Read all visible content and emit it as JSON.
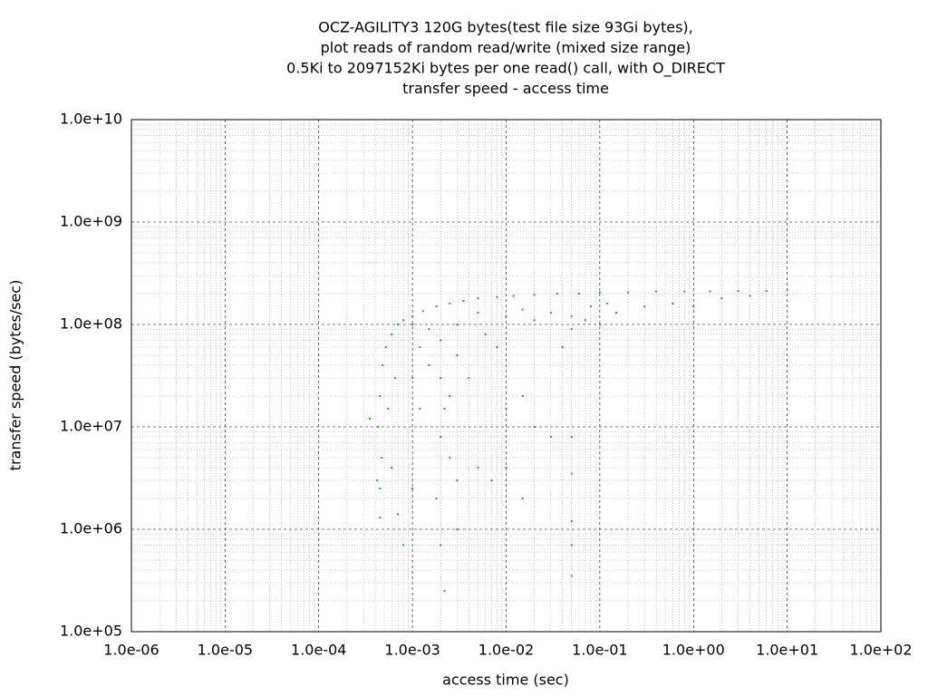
{
  "chart_data": {
    "type": "scatter",
    "title": [
      "OCZ-AGILITY3 120G bytes(test file size 93Gi bytes),",
      "plot reads of random read/write (mixed size range)",
      "0.5Ki to 2097152Ki bytes per one read() call, with O_DIRECT",
      "transfer speed - access time"
    ],
    "x_label": "access time (sec)",
    "y_label": "transfer speed (bytes/sec)",
    "log_x": true,
    "log_y": true,
    "grid": true,
    "minor_grid": true,
    "xlim": [
      1e-06,
      100
    ],
    "ylim": [
      100000,
      10000000000
    ],
    "xticks": [
      {
        "value": 1e-06,
        "label": "1.0e-06"
      },
      {
        "value": 1e-05,
        "label": "1.0e-05"
      },
      {
        "value": 0.0001,
        "label": "1.0e-04"
      },
      {
        "value": 0.001,
        "label": "1.0e-03"
      },
      {
        "value": 0.01,
        "label": "1.0e-02"
      },
      {
        "value": 0.1,
        "label": "1.0e-01"
      },
      {
        "value": 1,
        "label": "1.0e+00"
      },
      {
        "value": 10,
        "label": "1.0e+01"
      },
      {
        "value": 100,
        "label": "1.0e+02"
      }
    ],
    "yticks": [
      {
        "value": 100000,
        "label": "1.0e+05"
      },
      {
        "value": 1000000,
        "label": "1.0e+06"
      },
      {
        "value": 10000000,
        "label": "1.0e+07"
      },
      {
        "value": 100000000,
        "label": "1.0e+08"
      },
      {
        "value": 1000000000,
        "label": "1.0e+09"
      },
      {
        "value": 10000000000,
        "label": "1.0e+10"
      }
    ],
    "series": [
      {
        "color": "#00c000",
        "x": [
          0.00042,
          0.00043,
          0.00045,
          0.00048,
          0.00052,
          0.0006,
          0.0007,
          0.0008,
          0.001,
          0.0013,
          0.0018,
          0.0025,
          0.0035,
          0.005,
          0.008,
          0.012,
          0.02,
          0.035,
          0.06,
          0.1,
          0.2,
          0.4,
          0.8,
          1.5,
          3,
          6,
          10,
          0.001,
          0.0015,
          0.002,
          0.003,
          0.005,
          0.01,
          0.02,
          0.03,
          0.05,
          0.08,
          0.15,
          0.3,
          0.6,
          1,
          2,
          4,
          0.015,
          0.07,
          0.12,
          0.0012,
          0.0015,
          0.002,
          0.0022,
          0.0025,
          0.003,
          0.004,
          0.006,
          0.008,
          0.002,
          0.0025,
          0.0018,
          0.003,
          0.005,
          0.01,
          0.015,
          0.02,
          0.03,
          0.05,
          0.05,
          0.05,
          0.05,
          0.05,
          0.0022,
          0.002,
          0.003,
          0.015,
          0.0007,
          0.0008,
          0.00045,
          0.00045,
          0.00047,
          0.0006,
          0.001,
          0.00055,
          0.00065,
          0.007,
          0.01,
          0.00035,
          0.001,
          0.0012,
          0.04,
          0.1,
          0.05
        ],
        "values": [
          3000000,
          10000000,
          20000000,
          40000000,
          60000000,
          80000000,
          100000000,
          110000000,
          120000000,
          135000000,
          150000000,
          160000000,
          170000000,
          180000000,
          185000000,
          190000000,
          195000000,
          200000000,
          200000000,
          205000000,
          205000000,
          210000000,
          210000000,
          210000000,
          212000000,
          212000000,
          215000000,
          100000000,
          90000000,
          70000000,
          100000000,
          130000000,
          120000000,
          110000000,
          130000000,
          120000000,
          150000000,
          130000000,
          150000000,
          160000000,
          150000000,
          180000000,
          190000000,
          140000000,
          110000000,
          160000000,
          60000000,
          40000000,
          30000000,
          15000000,
          20000000,
          50000000,
          30000000,
          80000000,
          60000000,
          8000000,
          5000000,
          2000000,
          3000000,
          4000000,
          15000000,
          20000000,
          10000000,
          8000000,
          8000000,
          3500000,
          1200000,
          700000,
          350000,
          250000,
          700000,
          1000000,
          2000000,
          1400000,
          700000,
          1300000,
          2500000,
          5000000,
          4000000,
          2500000,
          15000000,
          30000000,
          3000000,
          4000000,
          12000000,
          30000000,
          15000000,
          60000000,
          100000000,
          90000000
        ]
      }
    ]
  }
}
